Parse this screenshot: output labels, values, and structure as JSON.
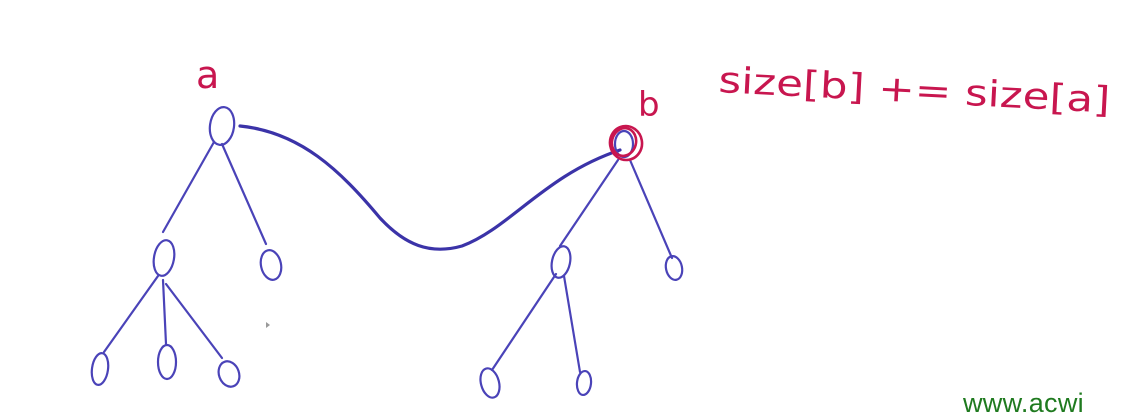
{
  "labels": {
    "node_a": "a",
    "node_b": "b",
    "formula": "size[b] += size[a]"
  },
  "watermark": "www.acwi",
  "colors": {
    "tree_ink": "#4a43b8",
    "highlight_ink": "#c8164f",
    "watermark": "#1f7a1f"
  }
}
